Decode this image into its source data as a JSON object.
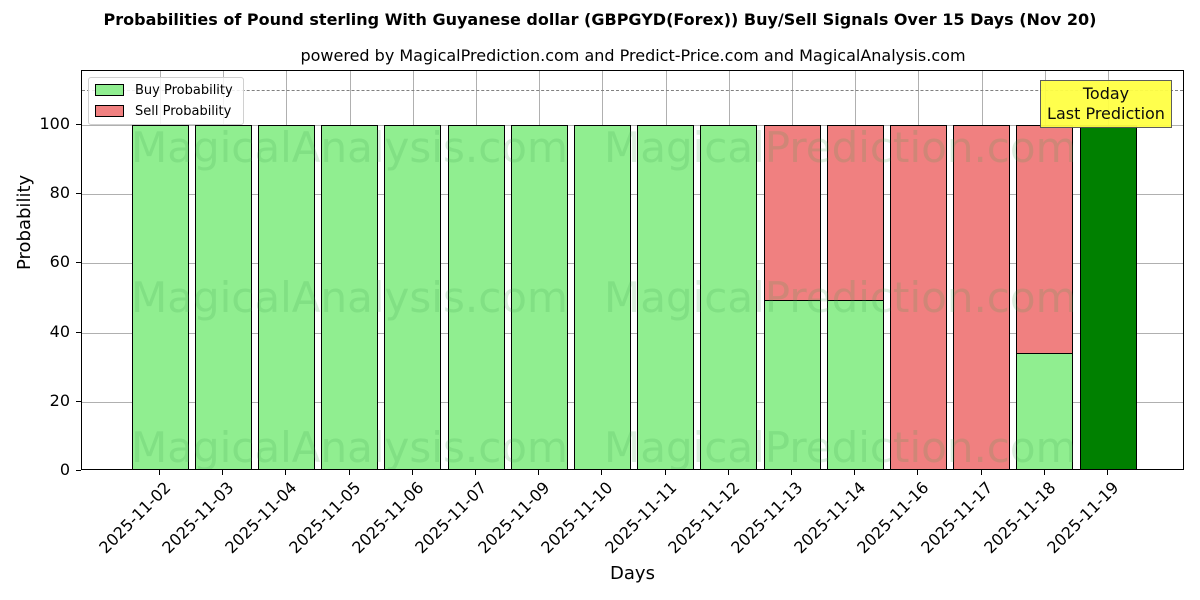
{
  "header": {
    "title": "Probabilities of Pound sterling With Guyanese dollar (GBPGYD(Forex)) Buy/Sell Signals Over 15 Days (Nov 20)",
    "subtitle": "powered by MagicalPrediction.com and Predict-Price.com and MagicalAnalysis.com"
  },
  "axes": {
    "xlabel": "Days",
    "ylabel": "Probability",
    "yticks": [
      "0",
      "20",
      "40",
      "60",
      "80",
      "100"
    ]
  },
  "legend": {
    "buy_label": "Buy Probability",
    "sell_label": "Sell Probability"
  },
  "annotation": {
    "line1": "Today",
    "line2": "Last Prediction"
  },
  "watermarks": [
    "MagicalAnalysis.com",
    "MagicalPrediction.com"
  ],
  "colors": {
    "buy": "#90ee90",
    "sell": "#f08080",
    "today_buy": "#008000",
    "annotation_bg": "#ffff44"
  },
  "chart_data": {
    "type": "bar",
    "stacked": true,
    "title": "Probabilities of Pound sterling With Guyanese dollar (GBPGYD(Forex)) Buy/Sell Signals Over 15 Days (Nov 20)",
    "subtitle": "powered by MagicalPrediction.com and Predict-Price.com and MagicalAnalysis.com",
    "xlabel": "Days",
    "ylabel": "Probability",
    "ylim": [
      0,
      115
    ],
    "yticks": [
      0,
      20,
      40,
      60,
      80,
      100
    ],
    "grid": true,
    "legend_position": "upper left",
    "reference_line": {
      "y": 110,
      "style": "dashed",
      "color": "#808080"
    },
    "categories": [
      "2025-11-02",
      "2025-11-03",
      "2025-11-04",
      "2025-11-05",
      "2025-11-06",
      "2025-11-07",
      "2025-11-09",
      "2025-11-10",
      "2025-11-11",
      "2025-11-12",
      "2025-11-13",
      "2025-11-14",
      "2025-11-16",
      "2025-11-17",
      "2025-11-18",
      "2025-11-19"
    ],
    "series": [
      {
        "name": "Buy Probability",
        "color": "#90ee90",
        "values": [
          100,
          100,
          100,
          100,
          100,
          100,
          100,
          100,
          100,
          100,
          49.4,
          49.4,
          0,
          0,
          34.1,
          100
        ]
      },
      {
        "name": "Sell Probability",
        "color": "#f08080",
        "values": [
          0,
          0,
          0,
          0,
          0,
          0,
          0,
          0,
          0,
          0,
          50.6,
          50.6,
          100,
          100,
          65.9,
          0
        ]
      }
    ],
    "annotations": [
      {
        "text": "Today\nLast Prediction",
        "x": "2025-11-19",
        "bg": "#ffff44"
      }
    ],
    "highlight": {
      "category": "2025-11-19",
      "color": "#008000"
    }
  }
}
